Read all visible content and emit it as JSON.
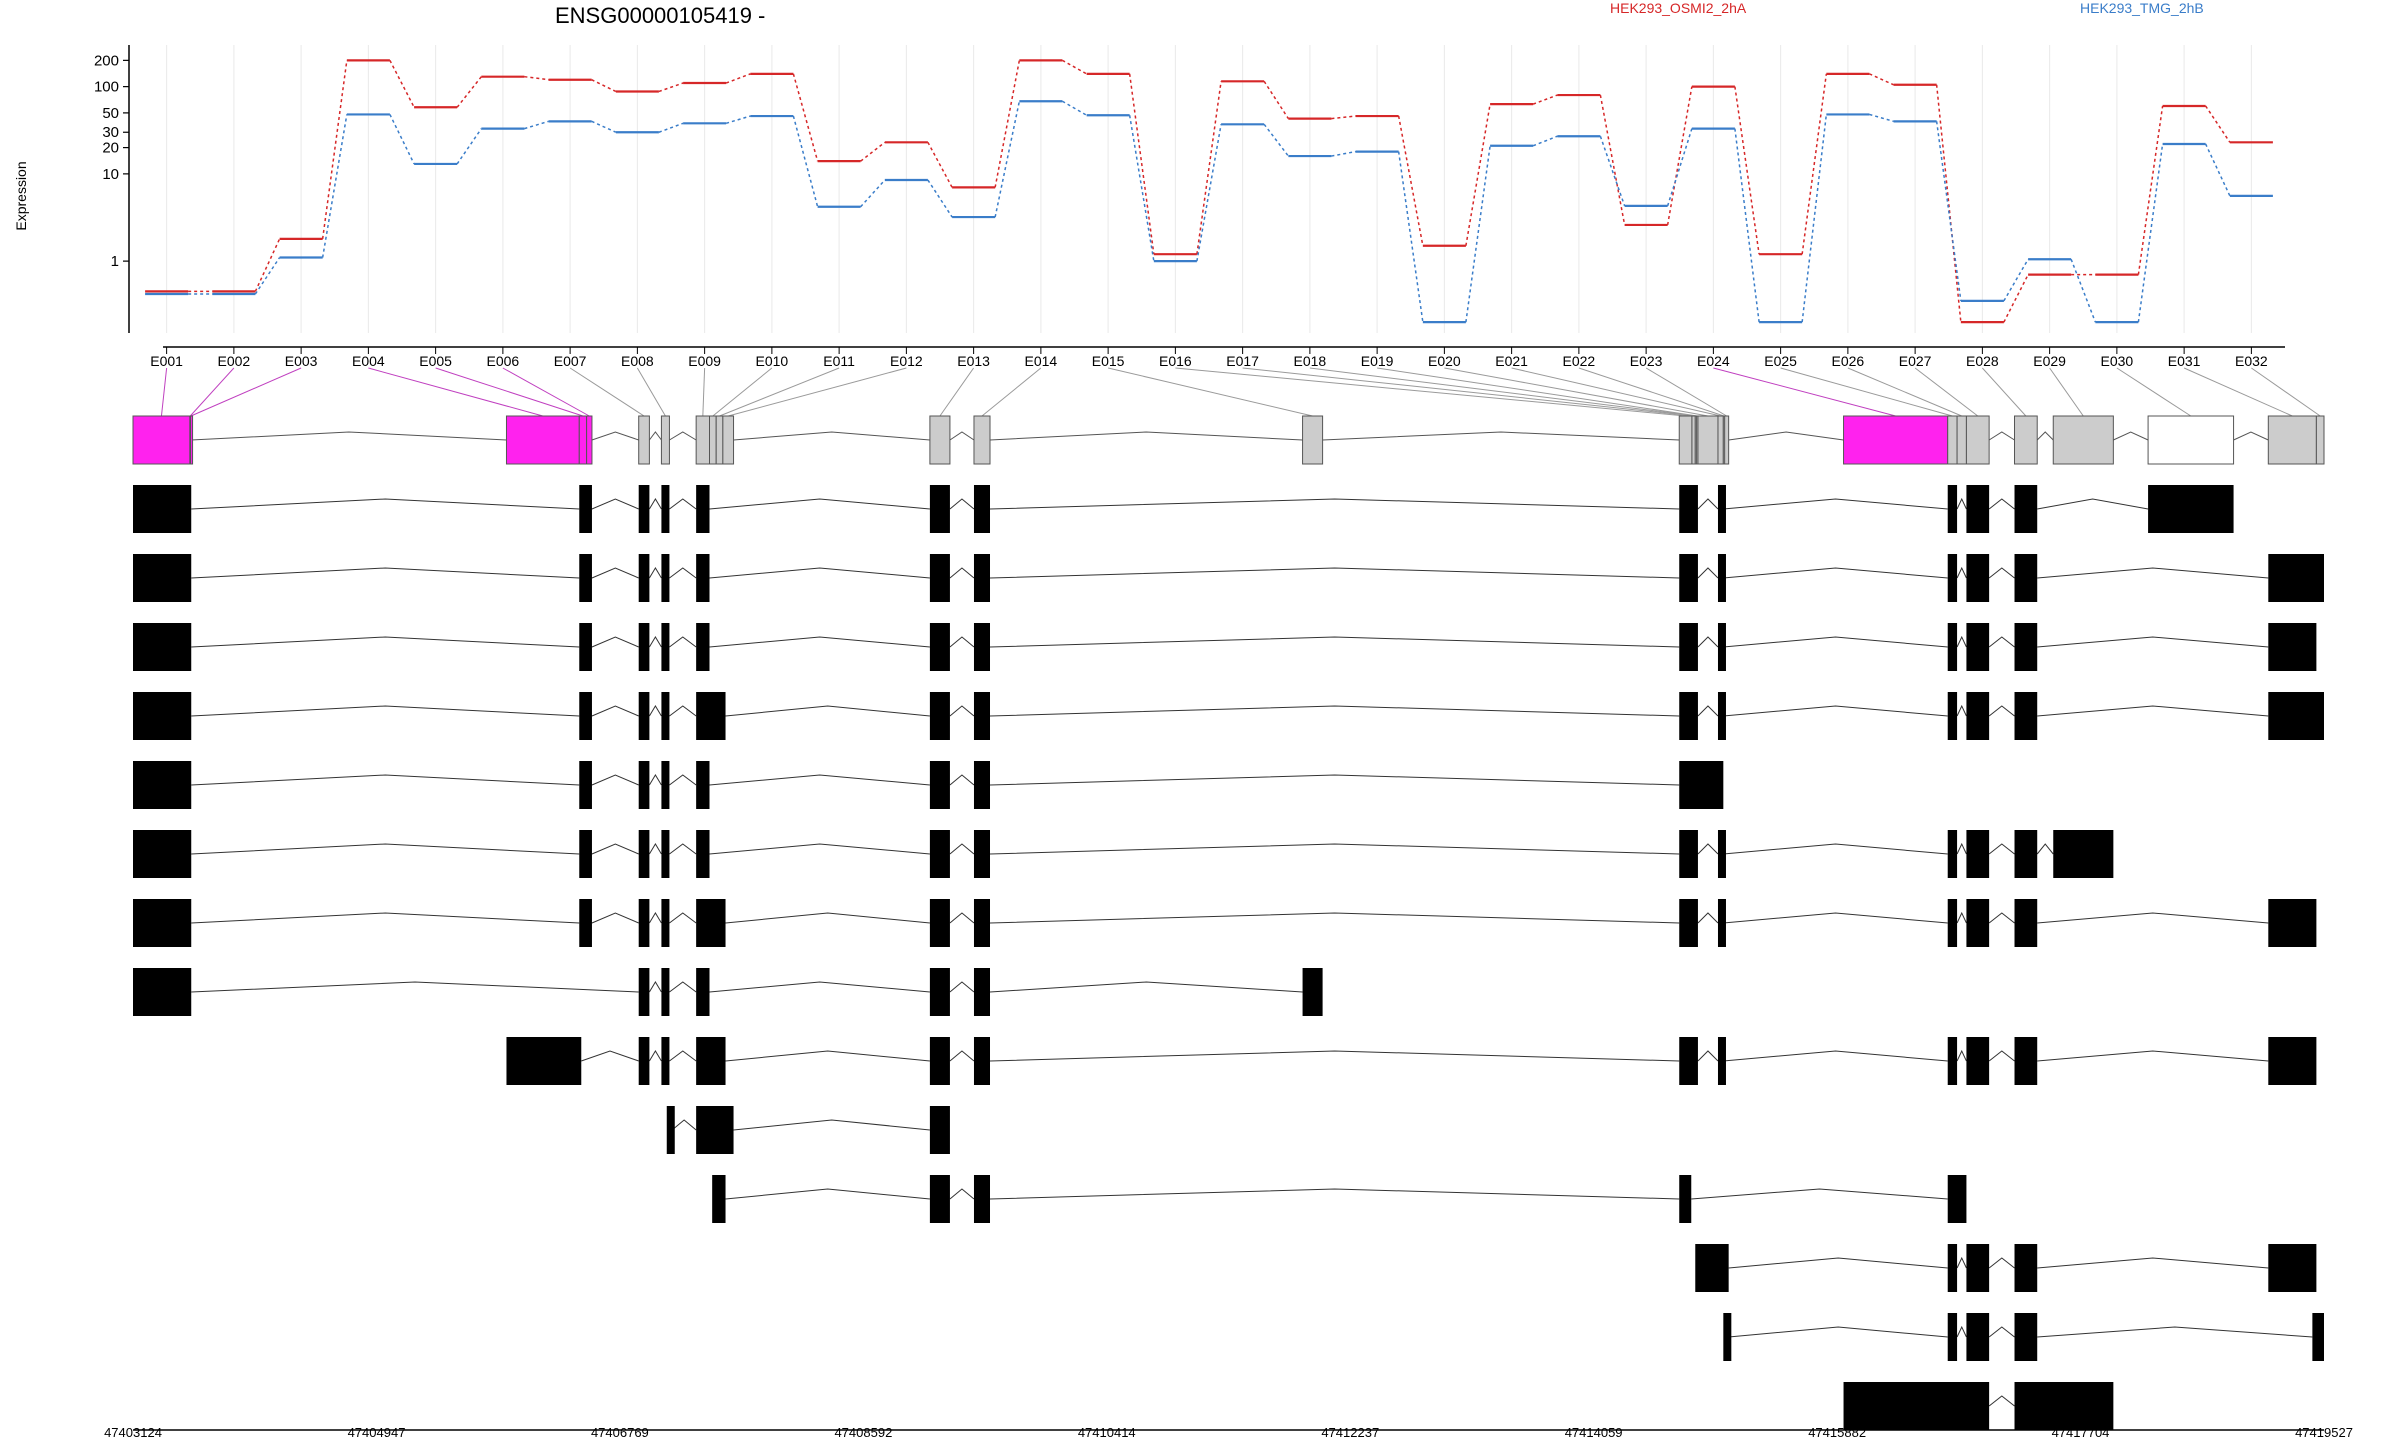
{
  "chart_data": {
    "type": "line",
    "title": "ENSG00000105419 -",
    "ylabel": "Expression",
    "yscale": "log",
    "ylim": [
      0.15,
      300
    ],
    "yticks": [
      1,
      10,
      20,
      30,
      50,
      100,
      200
    ],
    "ytick_labels": [
      "1",
      "10",
      "20",
      "30",
      "50",
      "100",
      "200"
    ],
    "legend_placement": "top",
    "categories": [
      "E001",
      "E002",
      "E003",
      "E004",
      "E005",
      "E006",
      "E007",
      "E008",
      "E009",
      "E010",
      "E011",
      "E012",
      "E013",
      "E014",
      "E015",
      "E016",
      "E017",
      "E018",
      "E019",
      "E020",
      "E021",
      "E022",
      "E023",
      "E024",
      "E025",
      "E026",
      "E027",
      "E028",
      "E029",
      "E030",
      "E031",
      "E032"
    ],
    "series": [
      {
        "name": "HEK293_OSMI2_2hA",
        "color": "#d62728",
        "values": [
          0.45,
          0.45,
          1.8,
          200,
          58,
          130,
          120,
          88,
          110,
          140,
          14,
          23,
          7,
          200,
          140,
          1.2,
          115,
          43,
          46,
          1.5,
          63,
          80,
          2.6,
          100,
          1.2,
          140,
          105,
          0.2,
          0.7,
          0.7,
          60,
          23
        ]
      },
      {
        "name": "HEK293_TMG_2hB",
        "color": "#3a7dc9",
        "values": [
          0.42,
          0.42,
          1.1,
          48,
          13,
          33,
          40,
          30,
          38,
          46,
          4.2,
          8.5,
          3.2,
          68,
          47,
          1.0,
          37,
          16,
          18,
          0.2,
          21,
          27,
          4.3,
          33,
          0.2,
          48,
          40,
          0.35,
          1.05,
          0.2,
          22,
          5.6
        ]
      }
    ],
    "exons": [
      {
        "id": "E001",
        "start": 47403124,
        "end": 47403550,
        "color": "#ff22ee"
      },
      {
        "id": "E002",
        "start": 47403550,
        "end": 47403555,
        "color": "#ff22ee"
      },
      {
        "id": "E003",
        "start": 47403555,
        "end": 47403560,
        "color": "#ff22ee"
      },
      {
        "id": "E004",
        "start": 47405920,
        "end": 47406465,
        "color": "#ff22ee"
      },
      {
        "id": "E005",
        "start": 47406465,
        "end": 47406520,
        "color": "#ff22ee"
      },
      {
        "id": "E006",
        "start": 47406520,
        "end": 47406560,
        "color": "#ff22ee"
      },
      {
        "id": "E007",
        "start": 47406910,
        "end": 47406990,
        "color": "#cccccc"
      },
      {
        "id": "E008",
        "start": 47407080,
        "end": 47407140,
        "color": "#cccccc"
      },
      {
        "id": "E009",
        "start": 47407340,
        "end": 47407440,
        "color": "#cccccc"
      },
      {
        "id": "E010",
        "start": 47407440,
        "end": 47407490,
        "color": "#cccccc"
      },
      {
        "id": "E011",
        "start": 47407490,
        "end": 47407540,
        "color": "#cccccc"
      },
      {
        "id": "E012",
        "start": 47407540,
        "end": 47407620,
        "color": "#cccccc"
      },
      {
        "id": "E013",
        "start": 47409090,
        "end": 47409240,
        "color": "#cccccc"
      },
      {
        "id": "E014",
        "start": 47409420,
        "end": 47409540,
        "color": "#cccccc"
      },
      {
        "id": "E015",
        "start": 47411880,
        "end": 47412030,
        "color": "#cccccc"
      },
      {
        "id": "E016",
        "start": 47414700,
        "end": 47414795,
        "color": "#cccccc"
      },
      {
        "id": "E017",
        "start": 47414795,
        "end": 47414820,
        "color": "#cccccc"
      },
      {
        "id": "E018",
        "start": 47414820,
        "end": 47414830,
        "color": "#cccccc"
      },
      {
        "id": "E019",
        "start": 47414830,
        "end": 47414840,
        "color": "#cccccc"
      },
      {
        "id": "E020",
        "start": 47414840,
        "end": 47414990,
        "color": "#cccccc"
      },
      {
        "id": "E021",
        "start": 47414990,
        "end": 47415030,
        "color": "#cccccc"
      },
      {
        "id": "E022",
        "start": 47415030,
        "end": 47415040,
        "color": "#cccccc"
      },
      {
        "id": "E023",
        "start": 47415040,
        "end": 47415070,
        "color": "#cccccc"
      },
      {
        "id": "E024",
        "start": 47415930,
        "end": 47416710,
        "color": "#ff22ee"
      },
      {
        "id": "E025",
        "start": 47416710,
        "end": 47416780,
        "color": "#cccccc"
      },
      {
        "id": "E026",
        "start": 47416780,
        "end": 47416850,
        "color": "#cccccc"
      },
      {
        "id": "E027",
        "start": 47416850,
        "end": 47417020,
        "color": "#cccccc"
      },
      {
        "id": "E028",
        "start": 47417210,
        "end": 47417380,
        "color": "#cccccc"
      },
      {
        "id": "E029",
        "start": 47417500,
        "end": 47417950,
        "color": "#cccccc"
      },
      {
        "id": "E030",
        "start": 47418210,
        "end": 47418850,
        "color": "#ffffff"
      },
      {
        "id": "E031",
        "start": 47419110,
        "end": 47419470,
        "color": "#cccccc"
      },
      {
        "id": "E032",
        "start": 47419470,
        "end": 47419527,
        "color": "#cccccc"
      }
    ],
    "transcripts": [
      [
        [
          47403124,
          47403560
        ],
        [
          47406465,
          47406560
        ],
        [
          47406910,
          47406990
        ],
        [
          47407080,
          47407140
        ],
        [
          47407340,
          47407440
        ],
        [
          47409090,
          47409240
        ],
        [
          47409420,
          47409540
        ],
        [
          47414700,
          47414840
        ],
        [
          47414990,
          47415030
        ],
        [
          47416710,
          47416780
        ],
        [
          47416850,
          47417020
        ],
        [
          47417210,
          47417380
        ],
        [
          47418210,
          47418850
        ]
      ],
      [
        [
          47403124,
          47403560
        ],
        [
          47406465,
          47406560
        ],
        [
          47406910,
          47406990
        ],
        [
          47407080,
          47407140
        ],
        [
          47407340,
          47407440
        ],
        [
          47409090,
          47409240
        ],
        [
          47409420,
          47409540
        ],
        [
          47414700,
          47414840
        ],
        [
          47414990,
          47415030
        ],
        [
          47416710,
          47416780
        ],
        [
          47416850,
          47417020
        ],
        [
          47417210,
          47417380
        ],
        [
          47419110,
          47419527
        ]
      ],
      [
        [
          47403124,
          47403560
        ],
        [
          47406465,
          47406560
        ],
        [
          47406910,
          47406990
        ],
        [
          47407080,
          47407140
        ],
        [
          47407340,
          47407440
        ],
        [
          47409090,
          47409240
        ],
        [
          47409420,
          47409540
        ],
        [
          47414700,
          47414840
        ],
        [
          47414990,
          47415030
        ],
        [
          47416710,
          47416780
        ],
        [
          47416850,
          47417020
        ],
        [
          47417210,
          47417380
        ],
        [
          47419110,
          47419470
        ]
      ],
      [
        [
          47403124,
          47403560
        ],
        [
          47406465,
          47406560
        ],
        [
          47406910,
          47406990
        ],
        [
          47407080,
          47407140
        ],
        [
          47407340,
          47407560
        ],
        [
          47409090,
          47409240
        ],
        [
          47409420,
          47409540
        ],
        [
          47414700,
          47414840
        ],
        [
          47414990,
          47415030
        ],
        [
          47416710,
          47416780
        ],
        [
          47416850,
          47417020
        ],
        [
          47417210,
          47417380
        ],
        [
          47419110,
          47419527
        ]
      ],
      [
        [
          47403124,
          47403560
        ],
        [
          47406465,
          47406560
        ],
        [
          47406910,
          47406990
        ],
        [
          47407080,
          47407140
        ],
        [
          47407340,
          47407440
        ],
        [
          47409090,
          47409240
        ],
        [
          47409420,
          47409540
        ],
        [
          47414700,
          47415030
        ]
      ],
      [
        [
          47403124,
          47403560
        ],
        [
          47406465,
          47406560
        ],
        [
          47406910,
          47406990
        ],
        [
          47407080,
          47407140
        ],
        [
          47407340,
          47407440
        ],
        [
          47409090,
          47409240
        ],
        [
          47409420,
          47409540
        ],
        [
          47414700,
          47414840
        ],
        [
          47414990,
          47415030
        ],
        [
          47416710,
          47416780
        ],
        [
          47416850,
          47417020
        ],
        [
          47417210,
          47417380
        ],
        [
          47417500,
          47417950
        ]
      ],
      [
        [
          47403124,
          47403560
        ],
        [
          47406465,
          47406560
        ],
        [
          47406910,
          47406990
        ],
        [
          47407080,
          47407140
        ],
        [
          47407340,
          47407560
        ],
        [
          47409090,
          47409240
        ],
        [
          47409420,
          47409540
        ],
        [
          47414700,
          47414840
        ],
        [
          47414990,
          47415030
        ],
        [
          47416710,
          47416780
        ],
        [
          47416850,
          47417020
        ],
        [
          47417210,
          47417380
        ],
        [
          47419110,
          47419470
        ]
      ],
      [
        [
          47403124,
          47403560
        ],
        [
          47406910,
          47406990
        ],
        [
          47407080,
          47407140
        ],
        [
          47407340,
          47407440
        ],
        [
          47409090,
          47409240
        ],
        [
          47409420,
          47409540
        ],
        [
          47411880,
          47412030
        ]
      ],
      [
        [
          47405920,
          47406480
        ],
        [
          47406910,
          47406990
        ],
        [
          47407080,
          47407140
        ],
        [
          47407340,
          47407560
        ],
        [
          47409090,
          47409240
        ],
        [
          47409420,
          47409540
        ],
        [
          47414700,
          47414840
        ],
        [
          47414990,
          47415030
        ],
        [
          47416710,
          47416780
        ],
        [
          47416850,
          47417020
        ],
        [
          47417210,
          47417380
        ],
        [
          47419110,
          47419470
        ]
      ],
      [
        [
          47407120,
          47407160
        ],
        [
          47407340,
          47407620
        ],
        [
          47409090,
          47409240
        ]
      ],
      [
        [
          47407460,
          47407560
        ],
        [
          47409090,
          47409240
        ],
        [
          47409420,
          47409540
        ],
        [
          47414700,
          47414790
        ],
        [
          47416710,
          47416850
        ]
      ],
      [
        [
          47414820,
          47415070
        ],
        [
          47416710,
          47416780
        ],
        [
          47416850,
          47417020
        ],
        [
          47417210,
          47417380
        ],
        [
          47419110,
          47419470
        ]
      ],
      [
        [
          47415030,
          47415070
        ],
        [
          47416710,
          47416780
        ],
        [
          47416850,
          47417020
        ],
        [
          47417210,
          47417380
        ],
        [
          47419440,
          47419527
        ]
      ],
      [
        [
          47415930,
          47417020
        ],
        [
          47417210,
          47417950
        ]
      ]
    ],
    "genome_ticks": [
      47403124,
      47404947,
      47406769,
      47408592,
      47410414,
      47412237,
      47414059,
      47415882,
      47417704,
      47419527
    ]
  }
}
